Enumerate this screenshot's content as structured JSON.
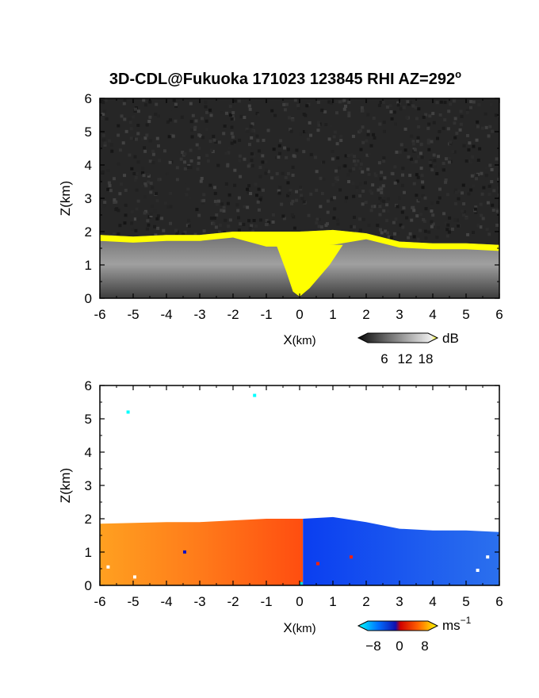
{
  "title": "3D-CDL@Fukuoka 171023 123845 RHI AZ=292",
  "title_suffix": "o",
  "chart_data": [
    {
      "type": "heatmap",
      "name": "reflectivity-panel",
      "xlabel": "X",
      "xlabel_unit": "(km)",
      "ylabel": "Z(km)",
      "xlim": [
        -6,
        6
      ],
      "ylim": [
        0,
        6
      ],
      "xticks": [
        "-6",
        "-5",
        "-4",
        "-3",
        "-2",
        "-1",
        "0",
        "1",
        "2",
        "3",
        "4",
        "5",
        "6"
      ],
      "yticks": [
        "0",
        "1",
        "2",
        "3",
        "4",
        "5",
        "6"
      ],
      "grid": false,
      "colorbar": {
        "ticks": [
          "6",
          "12",
          "18"
        ],
        "unit": "dB",
        "colors": [
          "#1a1a1a",
          "#555555",
          "#9a9a9a",
          "#dddddd",
          "#ffff00"
        ]
      },
      "echo_top_km": [
        [
          -6,
          1.9
        ],
        [
          -5,
          1.85
        ],
        [
          -4,
          1.9
        ],
        [
          -3,
          1.9
        ],
        [
          -2,
          2.0
        ],
        [
          -1,
          2.0
        ],
        [
          0,
          2.0
        ],
        [
          1,
          2.05
        ],
        [
          2,
          1.95
        ],
        [
          3,
          1.7
        ],
        [
          4,
          1.65
        ],
        [
          5,
          1.65
        ],
        [
          6,
          1.6
        ]
      ],
      "colors": {
        "noise": "#262626",
        "strong_echo": "#ffff00"
      }
    },
    {
      "type": "heatmap",
      "name": "doppler-velocity-panel",
      "xlabel": "X",
      "xlabel_unit": "(km)",
      "ylabel": "Z(km)",
      "xlim": [
        -6,
        6
      ],
      "ylim": [
        0,
        6
      ],
      "xticks": [
        "-6",
        "-5",
        "-4",
        "-3",
        "-2",
        "-1",
        "0",
        "1",
        "2",
        "3",
        "4",
        "5",
        "6"
      ],
      "yticks": [
        "0",
        "1",
        "2",
        "3",
        "4",
        "5",
        "6"
      ],
      "grid": false,
      "colorbar": {
        "ticks": [
          "−8",
          "0",
          "8"
        ],
        "unit": "ms",
        "unit_exponent": "−1",
        "colors": [
          "#00ffff",
          "#0050ff",
          "#1010c0",
          "#ff2000",
          "#ff8000",
          "#ffff00"
        ]
      },
      "velocity_ms": {
        "x_lt_0": 6,
        "x_gt_0": -6
      },
      "colors": {
        "approaching": "#1e5cf0",
        "receding": "#ff6a18"
      }
    }
  ]
}
